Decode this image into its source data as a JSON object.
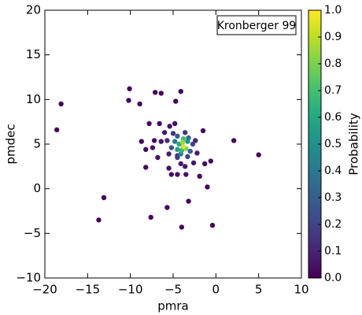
{
  "chart_data": {
    "type": "scatter",
    "annotation": "Kronberger 99",
    "x_label": "pmra",
    "y_label": "pmdec",
    "xlim": [
      -20,
      10
    ],
    "ylim": [
      -10,
      20
    ],
    "xticks": [
      {
        "value": -20,
        "label": "−20"
      },
      {
        "value": -15,
        "label": "−15"
      },
      {
        "value": -10,
        "label": "−10"
      },
      {
        "value": -5,
        "label": "−5"
      },
      0,
      5,
      10
    ],
    "yticks": [
      {
        "value": -10,
        "label": "−10"
      },
      {
        "value": -5,
        "label": "−5"
      },
      0,
      5,
      10,
      15,
      20
    ],
    "colormap": "viridis",
    "colorbar": {
      "label": "Probability",
      "lim": [
        0,
        1
      ],
      "ticks": [
        {
          "value": 0,
          "label": "0.0"
        },
        0.1,
        0.2,
        0.3,
        0.4,
        0.5,
        0.6,
        0.7,
        0.8,
        0.9,
        {
          "value": 1,
          "label": "1.0"
        }
      ]
    },
    "x": [
      -18.1,
      -18.6,
      -10.1,
      -10.2,
      -8.9,
      -7.1,
      -6.4,
      -4.1,
      -4.7,
      -13.1,
      -13.7,
      -7.6,
      -5.7,
      -4.0,
      -0.4,
      -3.2,
      5.0,
      2.1,
      -1.5,
      -1.3,
      -0.6,
      -1.0,
      -1.9,
      -8.2,
      -8.2,
      -7.8,
      -6.6,
      -4.8,
      -8.7,
      -7.2,
      -7.4,
      -6.8,
      -5.2,
      -4.5,
      -3.5,
      -5.5,
      -6.4,
      -6.0,
      -5.4,
      -2.6,
      -2.2,
      -3.6,
      -4.1,
      -4.5,
      -5.5,
      -2.4,
      -5.7,
      -5.0,
      -3.6,
      -2.7,
      -5.2,
      -3.3,
      -4.5,
      -3.0,
      -4.5,
      -3.2,
      -4.8,
      -4.1,
      -3.3,
      -4.5,
      -4.3,
      -4.0,
      -3.8,
      -3.5,
      -3.9,
      -3.8
    ],
    "y": [
      9.5,
      6.6,
      11.2,
      9.9,
      9.5,
      10.8,
      10.7,
      10.9,
      9.8,
      -1.0,
      -3.5,
      -3.2,
      -2.1,
      -4.3,
      -4.1,
      -1.4,
      3.8,
      5.4,
      6.5,
      2.8,
      3.1,
      0.2,
      1.4,
      2.4,
      4.4,
      7.3,
      7.3,
      7.3,
      5.3,
      5.4,
      4.6,
      3.5,
      1.6,
      1.6,
      1.6,
      2.3,
      5.3,
      6.3,
      7.0,
      2.9,
      4.0,
      2.5,
      2.8,
      3.7,
      3.9,
      5.4,
      5.4,
      6.2,
      6.3,
      5.0,
      4.6,
      3.6,
      3.5,
      4.2,
      5.9,
      5.7,
      5.3,
      3.9,
      5.3,
      4.4,
      5.0,
      4.3,
      5.6,
      4.5,
      5.2,
      4.7
    ],
    "probability": [
      0.02,
      0.02,
      0.02,
      0.02,
      0.02,
      0.02,
      0.02,
      0.02,
      0.02,
      0.02,
      0.02,
      0.02,
      0.02,
      0.02,
      0.02,
      0.02,
      0.02,
      0.02,
      0.03,
      0.03,
      0.03,
      0.02,
      0.03,
      0.03,
      0.04,
      0.03,
      0.03,
      0.04,
      0.03,
      0.04,
      0.05,
      0.05,
      0.04,
      0.05,
      0.05,
      0.05,
      0.06,
      0.06,
      0.05,
      0.06,
      0.07,
      0.08,
      0.08,
      0.1,
      0.08,
      0.1,
      0.12,
      0.15,
      0.15,
      0.2,
      0.25,
      0.2,
      0.18,
      0.3,
      0.3,
      0.35,
      0.4,
      0.45,
      0.5,
      0.55,
      0.6,
      0.65,
      0.7,
      0.8,
      0.85,
      0.95
    ]
  }
}
